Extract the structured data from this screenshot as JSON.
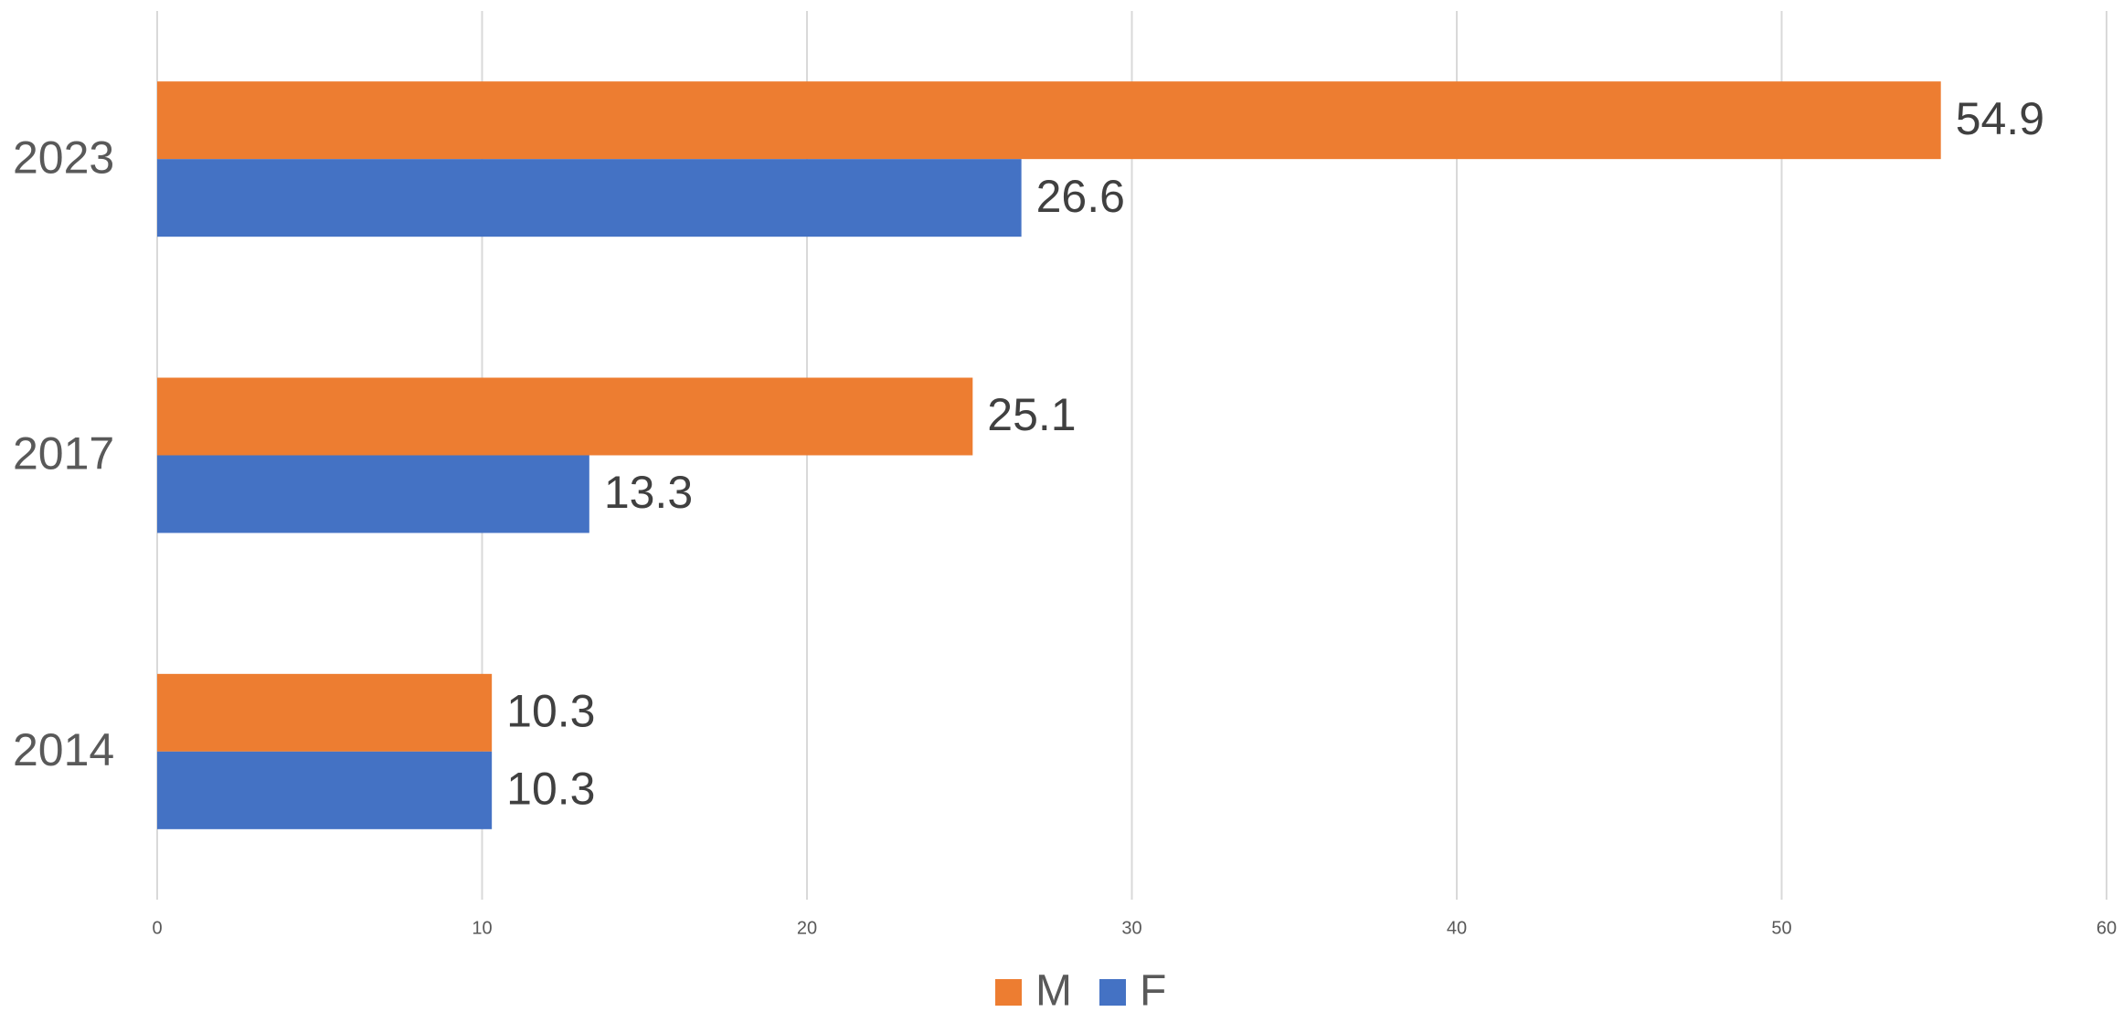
{
  "chart_data": {
    "type": "bar",
    "orientation": "horizontal",
    "categories": [
      "2023",
      "2017",
      "2014"
    ],
    "series": [
      {
        "name": "M",
        "color": "#ed7d31",
        "values": [
          54.9,
          25.1,
          10.3
        ]
      },
      {
        "name": "F",
        "color": "#4472c4",
        "values": [
          26.6,
          13.3,
          10.3
        ]
      }
    ],
    "xlim": [
      0,
      60
    ],
    "xticks": [
      0,
      10,
      20,
      30,
      40,
      50,
      60
    ],
    "grid": true,
    "legend": "bottom"
  }
}
